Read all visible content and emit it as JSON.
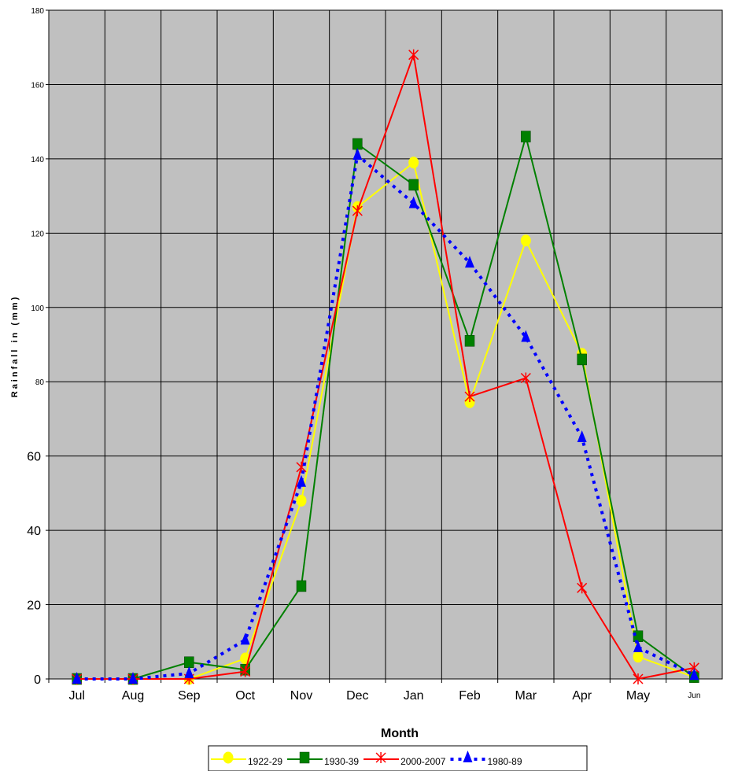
{
  "chart_data": {
    "type": "line",
    "title": "",
    "xlabel": "Month",
    "ylabel": "Rainfall in (mm)",
    "ylim": [
      0,
      180
    ],
    "y_ticks": [
      0,
      20,
      40,
      60,
      80,
      100,
      120,
      140,
      160,
      180
    ],
    "grid": true,
    "legend_position": "bottom",
    "plot_background": "#c0c0c0",
    "categories": [
      "Jul",
      "Aug",
      "Sep",
      "Oct",
      "Nov",
      "Dec",
      "Jan",
      "Feb",
      "Mar",
      "Apr",
      "May",
      "Jun"
    ],
    "series": [
      {
        "name": "1922-29",
        "color": "#ffff00",
        "marker": "circle",
        "dash": "solid",
        "values": [
          0,
          0,
          0,
          5.5,
          48,
          127,
          139,
          74.5,
          118,
          87.5,
          6,
          0.5
        ]
      },
      {
        "name": "1930-39",
        "color": "#008000",
        "marker": "square",
        "dash": "solid",
        "values": [
          0,
          0,
          4.5,
          2.5,
          25,
          144,
          133,
          91,
          146,
          86,
          11.5,
          0.5
        ]
      },
      {
        "name": "2000-2007",
        "color": "#ff0000",
        "marker": "asterisk",
        "dash": "solid",
        "values": [
          0,
          0,
          0,
          2,
          57,
          126,
          168,
          76,
          81,
          24.5,
          0,
          3
        ]
      },
      {
        "name": "1980-89",
        "color": "#0000ff",
        "marker": "triangle",
        "dash": "dotted",
        "values": [
          0,
          0,
          1.5,
          10.5,
          53,
          141,
          128,
          112,
          92,
          65,
          8.5,
          1
        ]
      }
    ]
  }
}
